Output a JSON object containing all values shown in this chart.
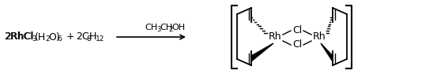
{
  "figsize": [
    5.48,
    0.94
  ],
  "dpi": 100,
  "bg_color": "#ffffff",
  "reactant_text": "2RhCl",
  "subscript_3": "3",
  "reactant_h2o": "(H",
  "subscript_2": "2",
  "reactant_o6": "O)",
  "subscript_6": "6",
  "plus": "+",
  "reactant2": "2C",
  "sub_c8": "8",
  "reactant2b": "H",
  "sub_h12": "12",
  "arrow_label": "CH",
  "arrow_label_sub": "3",
  "arrow_label2": "CH",
  "arrow_label2_sub": "2",
  "arrow_label3": "OH",
  "rh_label": "Rh",
  "cl_top": "Cl",
  "cl_bot": "Cl",
  "text_color": "#000000",
  "line_color": "#000000",
  "font_size_main": 9,
  "font_size_sub": 6.5
}
